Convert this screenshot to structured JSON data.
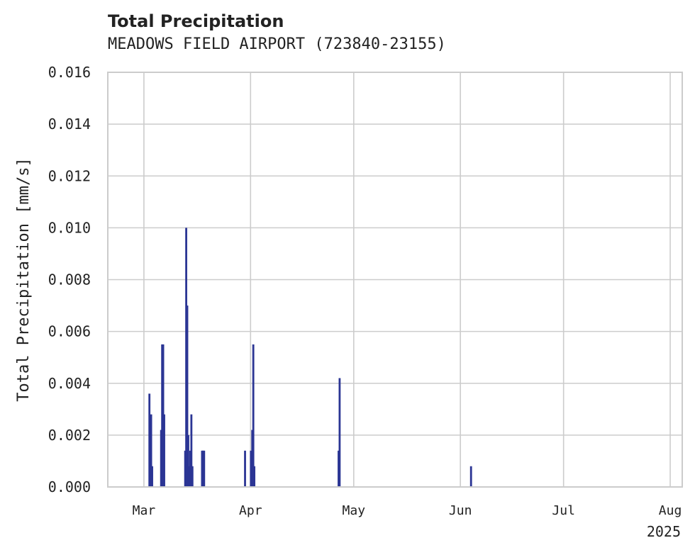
{
  "chart_data": {
    "type": "bar",
    "title": "Total Precipitation",
    "subtitle": "MEADOWS FIELD AIRPORT (723840-23155)",
    "ylabel": "Total Precipitation [mm/s]",
    "xlabel": "",
    "x_offset_label": "2025",
    "ylim": [
      0,
      0.016
    ],
    "xlim_days": [
      -10.5,
      156.5
    ],
    "y_ticks": [
      "0.000",
      "0.002",
      "0.004",
      "0.006",
      "0.008",
      "0.010",
      "0.012",
      "0.014",
      "0.016"
    ],
    "x_ticks": [
      {
        "label": "Mar",
        "day": 0
      },
      {
        "label": "Apr",
        "day": 31
      },
      {
        "label": "May",
        "day": 61
      },
      {
        "label": "Jun",
        "day": 92
      },
      {
        "label": "Jul",
        "day": 122
      },
      {
        "label": "Aug",
        "day": 153
      }
    ],
    "grid": true,
    "bar_color": "#2b3594",
    "series": [
      {
        "name": "Total Precipitation",
        "x_days": [
          1.6,
          1.9,
          2.1,
          2.4,
          5.0,
          5.3,
          5.6,
          5.9,
          12.0,
          12.3,
          12.6,
          12.9,
          13.2,
          13.5,
          13.8,
          14.1,
          16.9,
          17.2,
          17.5,
          29.4,
          31.1,
          31.5,
          31.8,
          32.1,
          56.6,
          56.9,
          95.1
        ],
        "values": [
          0.0036,
          0.0014,
          0.0028,
          0.0008,
          0.0022,
          0.0055,
          0.0055,
          0.0028,
          0.0014,
          0.01,
          0.007,
          0.002,
          0.0008,
          0.0014,
          0.0028,
          0.0008,
          0.0014,
          0.0014,
          0.0014,
          0.0014,
          0.0014,
          0.0022,
          0.0055,
          0.0008,
          0.0014,
          0.0042,
          0.0008
        ]
      }
    ]
  }
}
